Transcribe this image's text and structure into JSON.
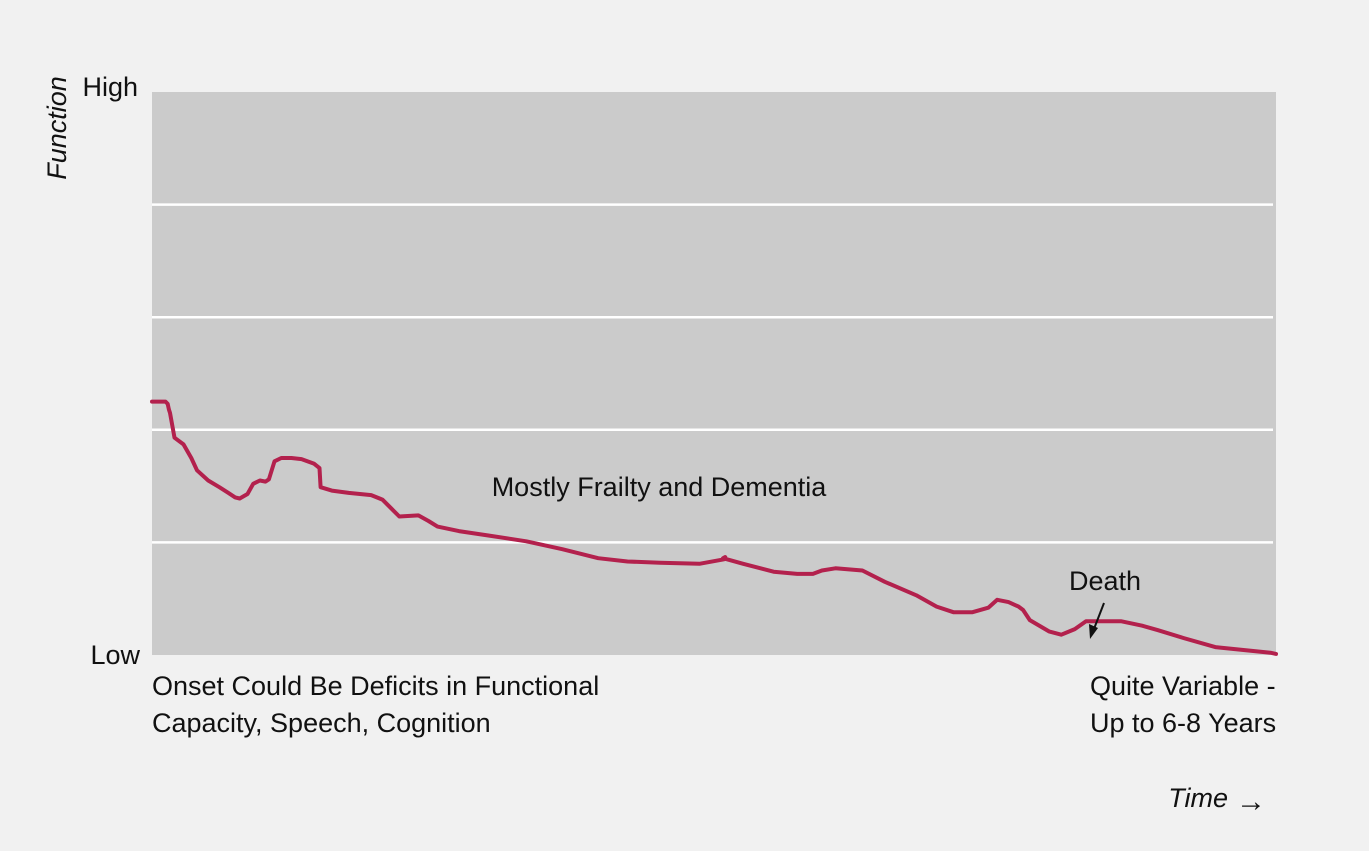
{
  "chart_data": {
    "type": "line",
    "ylabel": "Function",
    "xlabel": "Time",
    "time_arrow_glyph": "→",
    "y_high_label": "High",
    "y_low_label": "Low",
    "ylim": [
      0,
      5
    ],
    "xlim": [
      0,
      100
    ],
    "grid": true,
    "grid_lines": [
      1,
      2,
      3,
      4
    ],
    "annotation": "Mostly Frailty and Dementia",
    "onset_label": [
      "Onset Could Be Deficits in Functional",
      "Capacity, Speech, Cognition"
    ],
    "end_label": [
      "Quite Variable -",
      "Up to 6-8 Years"
    ],
    "death_label": "Death",
    "colors": {
      "plot_bg": "#cbcbcb",
      "page_bg": "#f1f1f1",
      "grid": "#ffffff",
      "line": "#b3214d"
    },
    "series": [
      {
        "x": [
          0,
          1.2,
          1.4,
          1.5,
          1.6,
          2.0,
          2.8,
          3.2,
          3.5,
          4.0,
          5.0,
          6.0,
          6.8,
          7.4,
          7.8,
          8.5,
          9.0,
          9.6,
          10.1,
          10.4,
          10.9,
          11.5,
          12.4,
          13.3,
          14.4,
          14.9,
          15.0,
          16.0,
          17.5,
          19.5,
          20.5,
          21.3,
          22.0,
          23.7,
          24.6,
          25.4,
          27.3,
          30.0,
          33.3,
          36.5,
          39.7,
          42.3,
          45.2,
          48.7,
          50.9,
          51.0,
          50.8,
          52.6,
          55.3,
          57.4,
          58.8,
          59.6,
          60.8,
          63.2,
          65.2,
          68.0,
          69.8,
          71.3,
          73.0,
          74.4,
          75.2,
          76.2,
          77.1,
          77.5,
          78.1,
          79.8,
          80.9,
          82.1,
          83.1,
          86.2,
          88.1,
          89.5,
          91.8,
          94.6,
          99.5,
          100.0
        ],
        "y": [
          2.25,
          2.25,
          2.23,
          2.18,
          2.15,
          1.93,
          1.87,
          1.8,
          1.75,
          1.64,
          1.55,
          1.49,
          1.44,
          1.4,
          1.39,
          1.43,
          1.52,
          1.55,
          1.54,
          1.56,
          1.72,
          1.75,
          1.75,
          1.74,
          1.7,
          1.66,
          1.49,
          1.46,
          1.44,
          1.42,
          1.38,
          1.3,
          1.23,
          1.24,
          1.19,
          1.14,
          1.1,
          1.06,
          1.01,
          0.94,
          0.86,
          0.83,
          0.82,
          0.81,
          0.85,
          0.87,
          0.86,
          0.81,
          0.74,
          0.72,
          0.72,
          0.75,
          0.77,
          0.75,
          0.65,
          0.53,
          0.43,
          0.38,
          0.38,
          0.42,
          0.49,
          0.47,
          0.43,
          0.4,
          0.31,
          0.21,
          0.18,
          0.23,
          0.3,
          0.3,
          0.26,
          0.22,
          0.15,
          0.07,
          0.02,
          0.01
        ]
      }
    ]
  }
}
